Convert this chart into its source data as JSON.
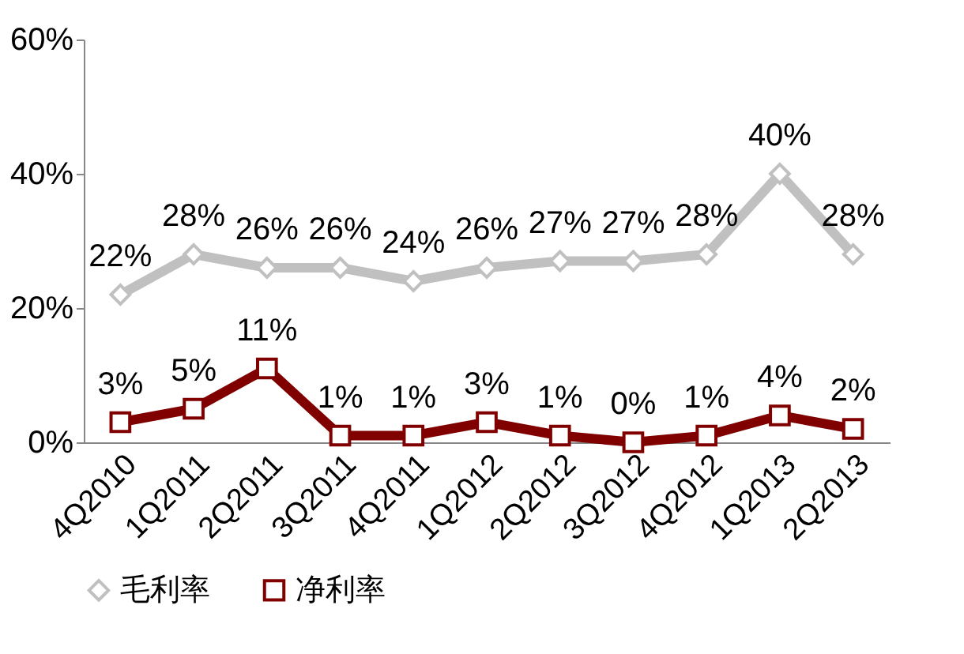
{
  "chart_data": {
    "type": "line",
    "categories": [
      "4Q2010",
      "1Q2011",
      "2Q2011",
      "3Q2011",
      "4Q2011",
      "1Q2012",
      "2Q2012",
      "3Q2012",
      "4Q2012",
      "1Q2013",
      "2Q2013"
    ],
    "series": [
      {
        "name": "毛利率",
        "color": "#c0c0c0",
        "marker": "diamond",
        "values": [
          22,
          28,
          26,
          26,
          24,
          26,
          27,
          27,
          28,
          40,
          28
        ],
        "value_labels": [
          "22%",
          "28%",
          "26%",
          "26%",
          "24%",
          "26%",
          "27%",
          "27%",
          "28%",
          "40%",
          "28%"
        ]
      },
      {
        "name": "净利率",
        "color": "#800000",
        "marker": "square",
        "values": [
          3,
          5,
          11,
          1,
          1,
          3,
          1,
          0,
          1,
          4,
          2
        ],
        "value_labels": [
          "3%",
          "5%",
          "11%",
          "1%",
          "1%",
          "3%",
          "1%",
          "0%",
          "1%",
          "4%",
          "2%"
        ]
      }
    ],
    "ylim": [
      0,
      60
    ],
    "yticks": [
      {
        "value": 0,
        "label": "0%"
      },
      {
        "value": 20,
        "label": "20%"
      },
      {
        "value": 40,
        "label": "40%"
      },
      {
        "value": 60,
        "label": "60%"
      }
    ],
    "grid": false,
    "legend": "bottom",
    "line_style": "solid"
  }
}
